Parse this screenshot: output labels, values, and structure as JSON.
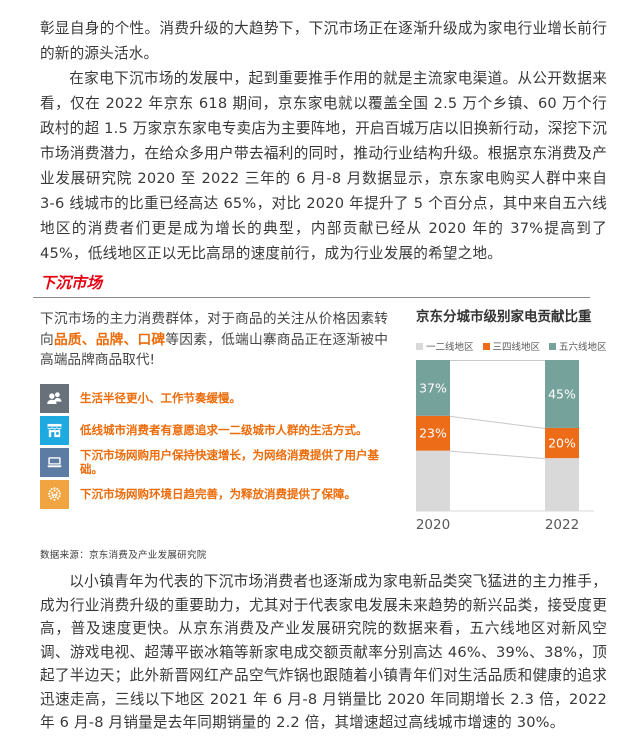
{
  "document": {
    "paragraph_1": "彰显自身的个性。消费升级的大趋势下，下沉市场正在逐渐升级成为家电行业增长前行的新的源头活水。",
    "paragraph_2": "在家电下沉市场的发展中，起到重要推手作用的就是主流家电渠道。从公开数据来看，仅在 2022 年京东 618 期间，京东家电就以覆盖全国 2.5 万个乡镇、60 万个行政村的超 1.5 万家京东家电专卖店为主要阵地，开启百城万店以旧换新行动，深挖下沉市场消费潜力，在给众多用户带去福利的同时，推动行业结构升级。根据京东消费及产业发展研究院 2020 至 2022 三年的 6 月-8 月数据显示，京东家电购买人群中来自 3-6 线城市的比重已经高达 65%，对比 2020 年提升了 5 个百分点，其中来自五六线地区的消费者们更是成为增长的典型，内部贡献已经从 2020 年的 37%提高到了 45%，低线地区正以无比高昂的速度前行，成为行业发展的希望之地。",
    "paragraph_3": "以小镇青年为代表的下沉市场消费者也逐渐成为家电新品类突飞猛进的主力推手，成为行业消费升级的重要助力，尤其对于代表家电发展未来趋势的新兴品类，接受度更高，普及速度更快。从京东消费及产业发展研究院的数据来看，五六线地区对新风空调、游戏电视、超薄平嵌冰箱等新家电成交额贡献率分别高达 46%、39%、38%，顶起了半边天；此外新晋网红产品空气炸锅也跟随着小镇青年们对生活品质和健康的追求迅速走高，三线以下地区 2021 年 6 月-8 月销量比 2020 年同期增长 2.3 倍，2022 年 6 月-8 月销量是去年同期销量的 2.2 倍，其增速超过高线城市增速的 30%。"
  },
  "section": {
    "title": "下沉市场",
    "title_color": "#E60012",
    "summary": {
      "prefix": "下沉市场的主力消费群体，对于商品的关注从价格因素转向",
      "highlight": "品质、品牌、口碑",
      "suffix": "等因素，低端山寨商品正在逐渐被中高端品牌商品取代!"
    },
    "highlight_color": "#ED6C0A",
    "bullets": [
      {
        "icon": "people-icon",
        "color": "#68717A",
        "text": "生活半径更小、工作节奏缓慢。"
      },
      {
        "icon": "storefront-icon",
        "color": "#1FA9E1",
        "text": "低线城市消费者有意愿追求一二级城市人群的生活方式。"
      },
      {
        "icon": "laptop-icon",
        "color": "#5C7CA3",
        "text": "下沉市场网购用户保持快速增长，为网络消费提供了用户基础。"
      },
      {
        "icon": "network-icon",
        "color": "#F2A440",
        "text": "下沉市场网购环境日趋完善，为释放消费提供了保障。"
      }
    ],
    "source": "数据来源：京东消费及产业发展研究院"
  },
  "chart_data": {
    "type": "bar",
    "subtype": "stacked-percent",
    "title": "京东分城市级别家电贡献比重",
    "categories": [
      "2020",
      "2022"
    ],
    "series": [
      {
        "name": "一二线地区",
        "color": "#D9D9D9",
        "values": [
          40,
          35
        ],
        "show_labels": false
      },
      {
        "name": "三四线地区",
        "color": "#ED6C18",
        "values": [
          23,
          20
        ],
        "show_labels": true
      },
      {
        "name": "五六线地区",
        "color": "#76A29C",
        "values": [
          37,
          45
        ],
        "show_labels": true
      }
    ],
    "ylim": [
      0,
      100
    ],
    "grid": false,
    "legend_position": "top",
    "connectors": true,
    "label_format": "percent",
    "label_color": "#ffffff",
    "axis_text_color": "#595959",
    "connector_color": "#c9c9c9"
  }
}
